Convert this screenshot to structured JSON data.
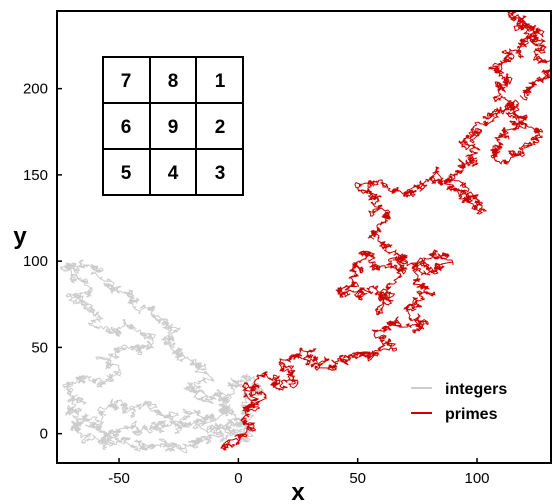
{
  "chart_data": {
    "type": "line",
    "title": "",
    "xlabel": "x",
    "ylabel": "y",
    "xlim": [
      -76,
      131
    ],
    "ylim": [
      -17,
      245
    ],
    "xticks": [
      -50,
      0,
      50,
      100
    ],
    "yticks": [
      0,
      50,
      100,
      150,
      200
    ],
    "grid": false,
    "legend": {
      "position": "bottom-right"
    },
    "series": [
      {
        "name": "integers",
        "color": "#cccccc",
        "style": "random-walk",
        "path": [
          [
            0,
            0
          ],
          [
            -5,
            4
          ],
          [
            -12,
            2
          ],
          [
            -18,
            6
          ],
          [
            -26,
            3
          ],
          [
            -34,
            7
          ],
          [
            -40,
            1
          ],
          [
            -48,
            4
          ],
          [
            -54,
            -2
          ],
          [
            -60,
            3
          ],
          [
            -66,
            9
          ],
          [
            -72,
            14
          ],
          [
            -66,
            21
          ],
          [
            -72,
            27
          ],
          [
            -64,
            33
          ],
          [
            -58,
            28
          ],
          [
            -50,
            36
          ],
          [
            -56,
            44
          ],
          [
            -48,
            51
          ],
          [
            -42,
            47
          ],
          [
            -36,
            55
          ],
          [
            -44,
            62
          ],
          [
            -52,
            58
          ],
          [
            -58,
            66
          ],
          [
            -64,
            74
          ],
          [
            -70,
            80
          ],
          [
            -62,
            84
          ],
          [
            -68,
            92
          ],
          [
            -72,
            98
          ],
          [
            -64,
            96
          ],
          [
            -58,
            90
          ],
          [
            -50,
            84
          ],
          [
            -44,
            78
          ],
          [
            -38,
            72
          ],
          [
            -32,
            66
          ],
          [
            -26,
            60
          ],
          [
            -30,
            52
          ],
          [
            -24,
            46
          ],
          [
            -18,
            40
          ],
          [
            -14,
            32
          ],
          [
            -20,
            26
          ],
          [
            -14,
            20
          ],
          [
            -8,
            22
          ],
          [
            -4,
            15
          ],
          [
            -10,
            9
          ],
          [
            -16,
            12
          ],
          [
            -22,
            6
          ],
          [
            -30,
            10
          ],
          [
            -38,
            16
          ],
          [
            -46,
            13
          ],
          [
            -52,
            19
          ],
          [
            -58,
            12
          ],
          [
            -64,
            8
          ],
          [
            -70,
            4
          ],
          [
            -64,
            -2
          ],
          [
            -56,
            -6
          ],
          [
            -48,
            -3
          ],
          [
            -40,
            -8
          ],
          [
            -32,
            -4
          ],
          [
            -24,
            -9
          ],
          [
            -16,
            -5
          ],
          [
            -8,
            -2
          ],
          [
            0,
            4
          ],
          [
            6,
            12
          ],
          [
            2,
            20
          ],
          [
            8,
            26
          ],
          [
            4,
            32
          ],
          [
            -2,
            28
          ],
          [
            -8,
            20
          ],
          [
            -4,
            12
          ],
          [
            2,
            6
          ],
          [
            6,
            -2
          ],
          [
            0,
            -5
          ]
        ]
      },
      {
        "name": "primes",
        "color": "#cc0000",
        "style": "random-walk",
        "path": [
          [
            -6,
            -9
          ],
          [
            0,
            -3
          ],
          [
            6,
            5
          ],
          [
            2,
            14
          ],
          [
            10,
            20
          ],
          [
            4,
            26
          ],
          [
            12,
            33
          ],
          [
            18,
            27
          ],
          [
            24,
            32
          ],
          [
            18,
            40
          ],
          [
            26,
            48
          ],
          [
            32,
            43
          ],
          [
            38,
            37
          ],
          [
            44,
            42
          ],
          [
            50,
            48
          ],
          [
            56,
            44
          ],
          [
            62,
            52
          ],
          [
            58,
            60
          ],
          [
            66,
            66
          ],
          [
            72,
            60
          ],
          [
            78,
            66
          ],
          [
            72,
            74
          ],
          [
            80,
            80
          ],
          [
            74,
            86
          ],
          [
            82,
            94
          ],
          [
            88,
            100
          ],
          [
            82,
            106
          ],
          [
            76,
            96
          ],
          [
            68,
            102
          ],
          [
            60,
            96
          ],
          [
            54,
            104
          ],
          [
            48,
            98
          ],
          [
            50,
            90
          ],
          [
            42,
            84
          ],
          [
            50,
            78
          ],
          [
            58,
            84
          ],
          [
            64,
            78
          ],
          [
            60,
            70
          ],
          [
            66,
            92
          ],
          [
            70,
            102
          ],
          [
            62,
            110
          ],
          [
            56,
            118
          ],
          [
            64,
            126
          ],
          [
            58,
            134
          ],
          [
            52,
            142
          ],
          [
            60,
            146
          ],
          [
            68,
            138
          ],
          [
            76,
            144
          ],
          [
            84,
            150
          ],
          [
            90,
            144
          ],
          [
            96,
            136
          ],
          [
            102,
            130
          ],
          [
            96,
            140
          ],
          [
            88,
            148
          ],
          [
            94,
            156
          ],
          [
            100,
            162
          ],
          [
            94,
            170
          ],
          [
            100,
            176
          ],
          [
            106,
            184
          ],
          [
            114,
            190
          ],
          [
            120,
            182
          ],
          [
            126,
            172
          ],
          [
            120,
            164
          ],
          [
            112,
            158
          ],
          [
            106,
            166
          ],
          [
            112,
            174
          ],
          [
            118,
            180
          ],
          [
            114,
            192
          ],
          [
            108,
            200
          ],
          [
            114,
            206
          ],
          [
            108,
            212
          ],
          [
            114,
            220
          ],
          [
            120,
            226
          ],
          [
            126,
            232
          ],
          [
            120,
            238
          ],
          [
            114,
            244
          ],
          [
            120,
            236
          ],
          [
            128,
            228
          ],
          [
            124,
            218
          ],
          [
            130,
            210
          ],
          [
            124,
            202
          ],
          [
            118,
            196
          ]
        ]
      }
    ]
  },
  "inset_grid": {
    "rows": [
      [
        "7",
        "8",
        "1"
      ],
      [
        "6",
        "9",
        "2"
      ],
      [
        "5",
        "4",
        "3"
      ]
    ]
  }
}
